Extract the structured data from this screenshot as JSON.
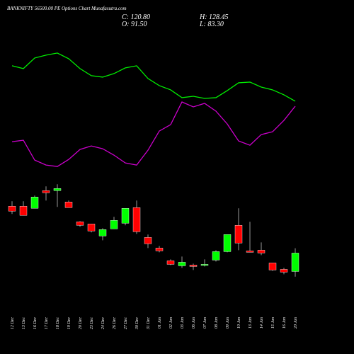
{
  "chart_data": {
    "type": "candlestick",
    "title": "BANKNIFTY 56500.00 PE Options Chart Munafasutra.com",
    "info": [
      "C: 120.80",
      "H: 128.45",
      "O: 91.50",
      "L: 83.30"
    ],
    "categories": [
      "12 Dec",
      "13 Dec",
      "16 Dec",
      "17 Dec",
      "18 Dec",
      "19 Dec",
      "20 Dec",
      "23 Dec",
      "24 Dec",
      "26 Dec",
      "27 Dec",
      "30 Dec",
      "31 Dec",
      "01 Jan",
      "02 Jan",
      "03 Jan",
      "06 Jan",
      "07 Jan",
      "08 Jan",
      "09 Jan",
      "10 Jan",
      "13 Jan",
      "14 Jan",
      "15 Jan",
      "16 Jan",
      "20 Jan"
    ],
    "open": [
      195.5,
      195.5,
      192.1,
      220.3,
      220.3,
      202.2,
      170.6,
      167.2,
      148.0,
      159.3,
      168.3,
      193.2,
      145.7,
      128.8,
      108.5,
      100.5,
      101.7,
      101.7,
      109.6,
      123.1,
      165.0,
      124.3,
      125.4,
      105.1,
      94.9,
      91.5
    ],
    "high": [
      203.4,
      203.4,
      212.4,
      227.1,
      230.5,
      204.5,
      171.7,
      167.2,
      160.4,
      178.5,
      192.1,
      204.5,
      150.3,
      132.2,
      110.7,
      115.2,
      103.9,
      110.7,
      125.4,
      150.3,
      192.1,
      170.6,
      137.8,
      105.1,
      97.2,
      128.45
    ],
    "low": [
      183.0,
      180.8,
      192.1,
      204.5,
      194.3,
      193.2,
      162.7,
      153.7,
      141.2,
      159.3,
      165.0,
      151.4,
      128.8,
      122.0,
      101.7,
      97.2,
      93.8,
      99.4,
      107.3,
      122.0,
      125.4,
      122.0,
      117.5,
      92.6,
      87.0,
      83.3
    ],
    "close": [
      187.6,
      180.8,
      210.2,
      216.9,
      223.7,
      193.2,
      165.0,
      155.9,
      158.2,
      172.9,
      192.1,
      154.8,
      135.6,
      124.3,
      102.8,
      106.2,
      99.4,
      102.8,
      123.1,
      150.3,
      136.7,
      122.0,
      120.9,
      93.8,
      90.4,
      120.8
    ],
    "up_color": "#00ff00",
    "down_color": "#ff0000",
    "series": [
      {
        "color": "#00ee00",
        "values": [
          419.2,
          414.7,
          431.6,
          436.2,
          439.5,
          430.5,
          414.7,
          403.4,
          401.1,
          406.8,
          415.8,
          419.2,
          398.9,
          387.6,
          380.8,
          368.4,
          370.6,
          367.2,
          368.4,
          379.7,
          392.1,
          393.2,
          385.3,
          380.8,
          372.9,
          362.7
        ]
      },
      {
        "color": "#cc00cc",
        "values": [
          298.3,
          300.6,
          268.9,
          261.0,
          258.7,
          270.0,
          285.9,
          291.5,
          287.0,
          276.8,
          264.4,
          261.0,
          284.7,
          315.2,
          325.4,
          361.6,
          353.7,
          359.3,
          346.9,
          326.5,
          299.4,
          292.6,
          309.6,
          314.1,
          332.2,
          354.8
        ]
      }
    ],
    "ylim": [
      -40,
      524
    ]
  }
}
